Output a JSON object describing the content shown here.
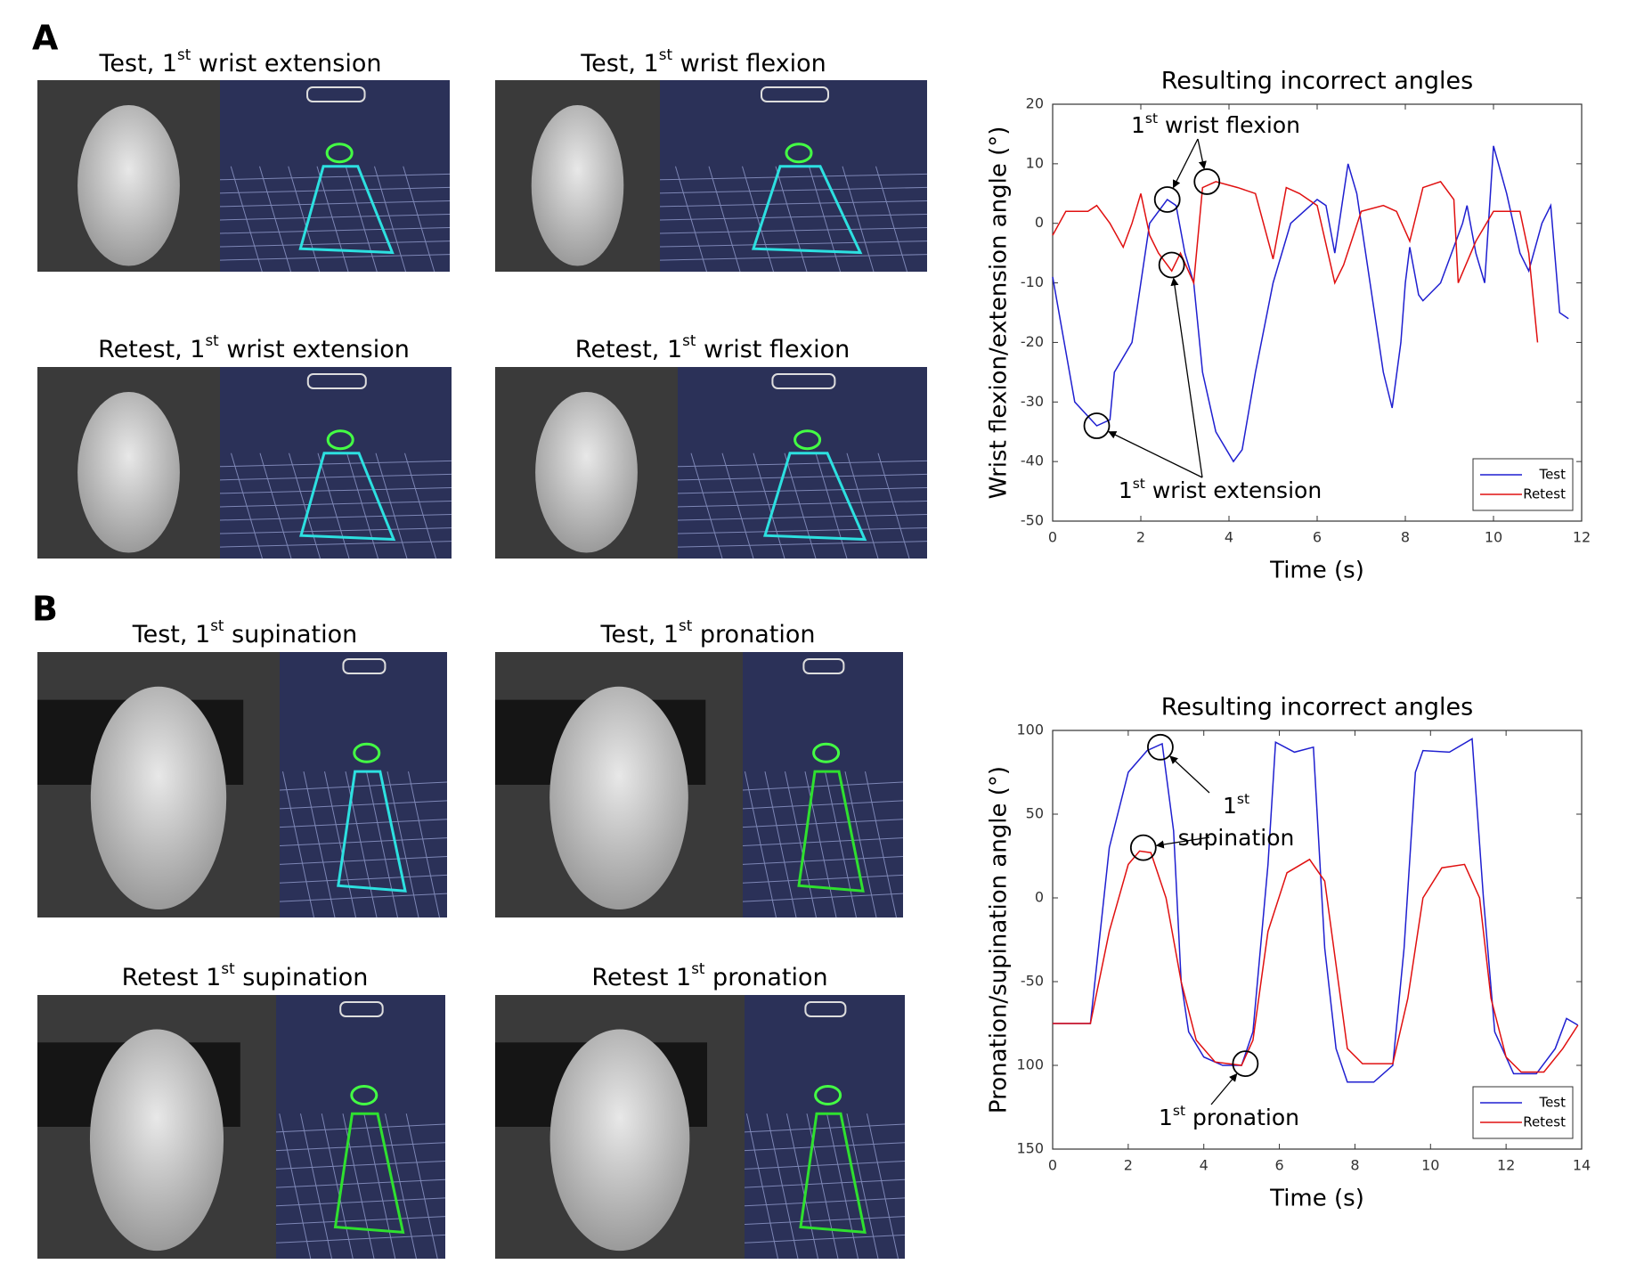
{
  "panel_labels": [
    "A",
    "B"
  ],
  "photo_captions": [
    [
      "Test, 1",
      "st",
      " wrist extension"
    ],
    [
      "Test, 1",
      "st",
      " wrist flexion"
    ],
    [
      "Retest, 1",
      "st",
      " wrist extension"
    ],
    [
      "Retest, 1",
      "st",
      " wrist flexion"
    ],
    [
      "Test, 1",
      "st",
      " supination"
    ],
    [
      "Test, 1",
      "st",
      " pronation"
    ],
    [
      "Retest 1",
      "st",
      " supination"
    ],
    [
      "Retest 1",
      "st",
      " pronation"
    ]
  ],
  "chart_data": [
    {
      "type": "line",
      "title": "Resulting incorrect angles",
      "xlabel": "Time (s)",
      "ylabel": "Wrist flexion/extension angle (°)",
      "xlim": [
        0,
        12
      ],
      "xticks": [
        0,
        2,
        4,
        6,
        8,
        10,
        12
      ],
      "ylim": [
        -50,
        20
      ],
      "yticks": [
        -50,
        -40,
        -30,
        -20,
        -10,
        0,
        10,
        20
      ],
      "legend": "lower right",
      "series": [
        {
          "name": "Test",
          "color": "#1f1fd0",
          "x": [
            0,
            0.5,
            1.0,
            1.3,
            1.4,
            1.8,
            2.0,
            2.2,
            2.6,
            2.8,
            3.0,
            3.2,
            3.4,
            3.7,
            4.1,
            4.3,
            4.6,
            5.0,
            5.4,
            6.0,
            6.2,
            6.4,
            6.7,
            6.9,
            7.2,
            7.5,
            7.7,
            7.9,
            8.0,
            8.1,
            8.3,
            8.4,
            8.8,
            9.3,
            9.4,
            9.6,
            9.8,
            10.0,
            10.3,
            10.6,
            10.8,
            11.1,
            11.3,
            11.5,
            11.7
          ],
          "values": [
            -9,
            -30,
            -34,
            -33,
            -25,
            -20,
            -10,
            0,
            4,
            3,
            -5,
            -10,
            -25,
            -35,
            -40,
            -38,
            -25,
            -10,
            0,
            4,
            3,
            -5,
            10,
            5,
            -10,
            -25,
            -31,
            -20,
            -10,
            -4,
            -12,
            -13,
            -10,
            0,
            3,
            -5,
            -10,
            13,
            5,
            -5,
            -8,
            0,
            3,
            -15,
            -16
          ]
        },
        {
          "name": "Retest",
          "color": "#e01010",
          "x": [
            0,
            0.3,
            0.8,
            1.0,
            1.3,
            1.6,
            1.8,
            2.0,
            2.2,
            2.4,
            2.7,
            2.9,
            3.2,
            3.4,
            3.7,
            4.2,
            4.6,
            5.0,
            5.3,
            5.6,
            6.0,
            6.4,
            6.6,
            7.0,
            7.5,
            7.8,
            8.1,
            8.4,
            8.8,
            9.1,
            9.2,
            9.6,
            10.0,
            10.6,
            10.8,
            11.0
          ],
          "values": [
            -2,
            2,
            2,
            3,
            0,
            -4,
            0,
            5,
            -2,
            -5,
            -8,
            -5,
            -10,
            6,
            7,
            6,
            5,
            -6,
            6,
            5,
            3,
            -10,
            -7,
            2,
            3,
            2,
            -3,
            6,
            7,
            4,
            -10,
            -3,
            2,
            2,
            -5,
            -20
          ]
        }
      ],
      "annotations": [
        {
          "lines": [
            [
              "1",
              "st",
              " wrist flexion"
            ]
          ],
          "points": [
            [
              2.6,
              4
            ],
            [
              3.5,
              7
            ]
          ]
        },
        {
          "lines": [
            [
              "1",
              "st",
              " wrist extension"
            ]
          ],
          "points": [
            [
              1.0,
              -34
            ],
            [
              2.7,
              -7
            ]
          ]
        }
      ]
    },
    {
      "type": "line",
      "title": "Resulting incorrect angles",
      "xlabel": "Time (s)",
      "ylabel": "Pronation/supination angle (°)",
      "xlim": [
        0,
        14
      ],
      "xticks": [
        0,
        2,
        4,
        6,
        8,
        10,
        12,
        14
      ],
      "ylim": [
        -150,
        100
      ],
      "yticks": [
        {
          "value": -150,
          "label": "150"
        },
        {
          "value": -100,
          "label": "100"
        },
        -50,
        0,
        50,
        100
      ],
      "legend": "lower right",
      "series": [
        {
          "name": "Test",
          "color": "#1f1fd0",
          "x": [
            0,
            1.0,
            1.5,
            2.0,
            2.5,
            2.9,
            3.2,
            3.4,
            3.6,
            4.0,
            4.5,
            5.0,
            5.3,
            5.7,
            5.9,
            6.4,
            6.9,
            7.2,
            7.5,
            7.8,
            8.5,
            9.0,
            9.3,
            9.6,
            9.8,
            10.5,
            11.1,
            11.4,
            11.7,
            12.2,
            12.8,
            13.3,
            13.6,
            13.9
          ],
          "values": [
            -75,
            -75,
            30,
            75,
            88,
            92,
            40,
            -50,
            -80,
            -95,
            -100,
            -100,
            -80,
            20,
            93,
            87,
            90,
            -30,
            -90,
            -110,
            -110,
            -100,
            -30,
            75,
            88,
            87,
            95,
            0,
            -80,
            -105,
            -105,
            -90,
            -72,
            -76
          ]
        },
        {
          "name": "Retest",
          "color": "#e01010",
          "x": [
            0,
            1.0,
            1.5,
            2.0,
            2.3,
            2.6,
            3.0,
            3.4,
            3.8,
            4.3,
            5.0,
            5.3,
            5.7,
            6.2,
            6.8,
            7.2,
            7.5,
            7.8,
            8.2,
            9.0,
            9.4,
            9.8,
            10.3,
            10.9,
            11.3,
            11.6,
            12.0,
            12.4,
            13.0,
            13.5,
            13.9
          ],
          "values": [
            -75,
            -75,
            -20,
            20,
            28,
            27,
            0,
            -50,
            -85,
            -98,
            -100,
            -85,
            -20,
            15,
            23,
            10,
            -40,
            -90,
            -99,
            -99,
            -60,
            0,
            18,
            20,
            0,
            -60,
            -95,
            -104,
            -104,
            -90,
            -76
          ]
        }
      ],
      "annotations": [
        {
          "lines": [
            [
              "1",
              "st"
            ],
            [
              "supination"
            ]
          ],
          "points": [
            [
              2.85,
              90
            ],
            [
              2.4,
              30
            ]
          ]
        },
        {
          "lines": [
            [
              "1",
              "st",
              " pronation"
            ]
          ],
          "points": [
            [
              5.1,
              -99
            ]
          ]
        }
      ]
    }
  ]
}
